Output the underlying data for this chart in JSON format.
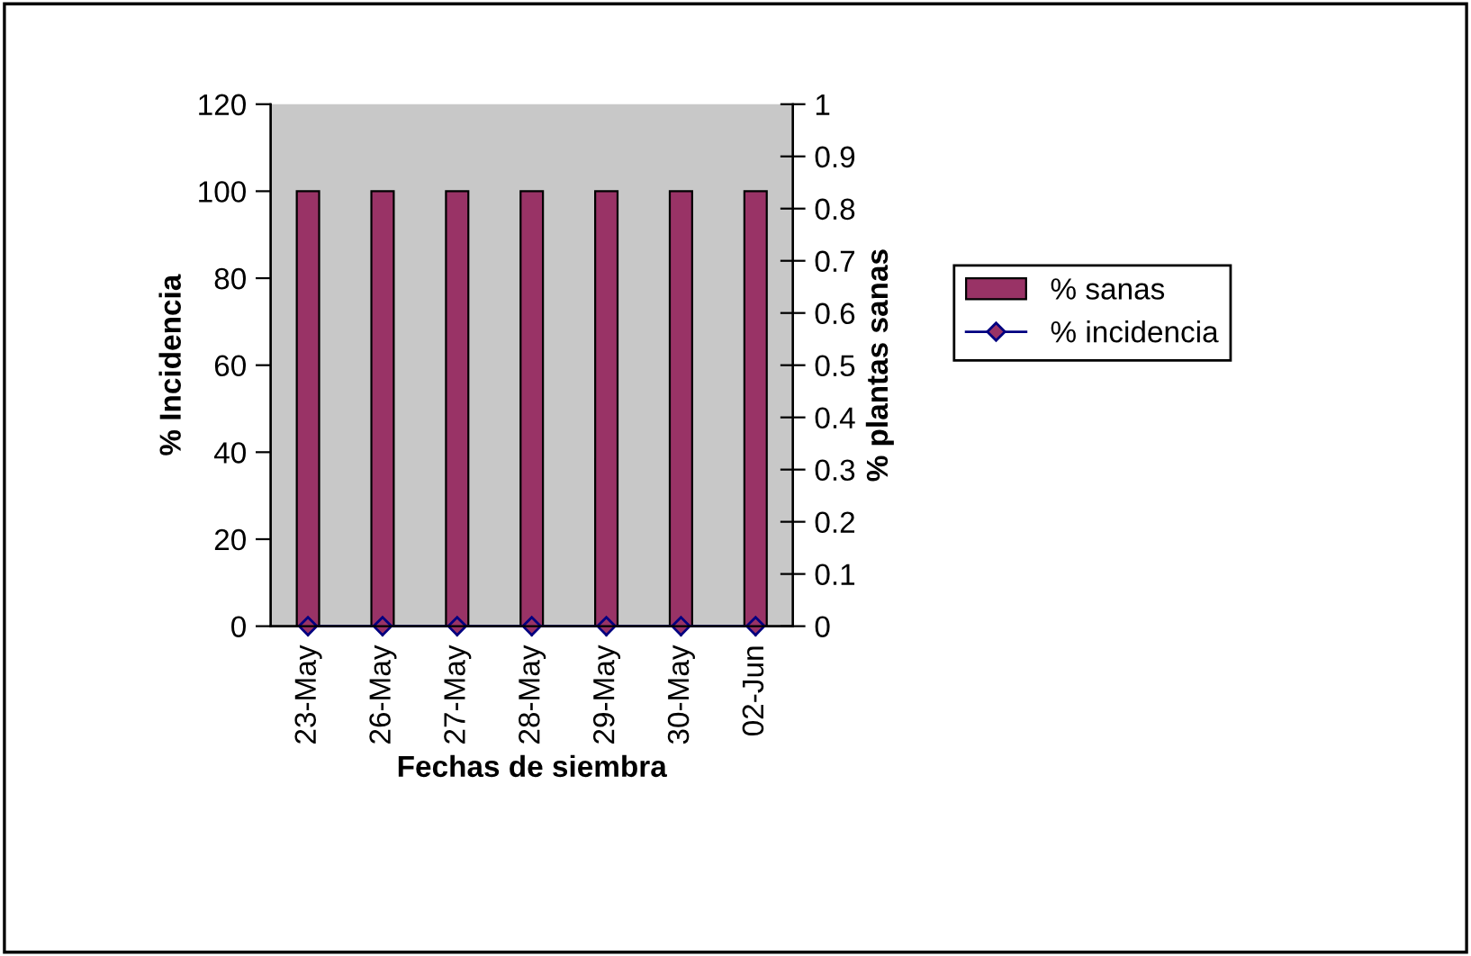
{
  "chart_data": {
    "type": "bar",
    "xlabel": "Fechas de siembra",
    "ylabel": "% Incidencia",
    "y2label": "% plantas sanas",
    "categories": [
      "23-May",
      "26-May",
      "27-May",
      "28-May",
      "29-May",
      "30-May",
      "02-Jun"
    ],
    "series": [
      {
        "name": "% sanas",
        "color": "#993366",
        "values": [
          100,
          100,
          100,
          100,
          100,
          100,
          100
        ]
      },
      {
        "name": "% incidencia",
        "type": "line",
        "color": "#000080",
        "marker": "diamond",
        "values": [
          0,
          0,
          0,
          0,
          0,
          0,
          0
        ]
      }
    ],
    "ylim": [
      0,
      120
    ],
    "yticks": [
      0,
      20,
      40,
      60,
      80,
      100,
      120
    ],
    "y2lim": [
      0,
      1
    ],
    "y2ticks": [
      0,
      0.1,
      0.2,
      0.3,
      0.4,
      0.5,
      0.6,
      0.7,
      0.8,
      0.9,
      1
    ],
    "grid": false,
    "legend": "right"
  }
}
